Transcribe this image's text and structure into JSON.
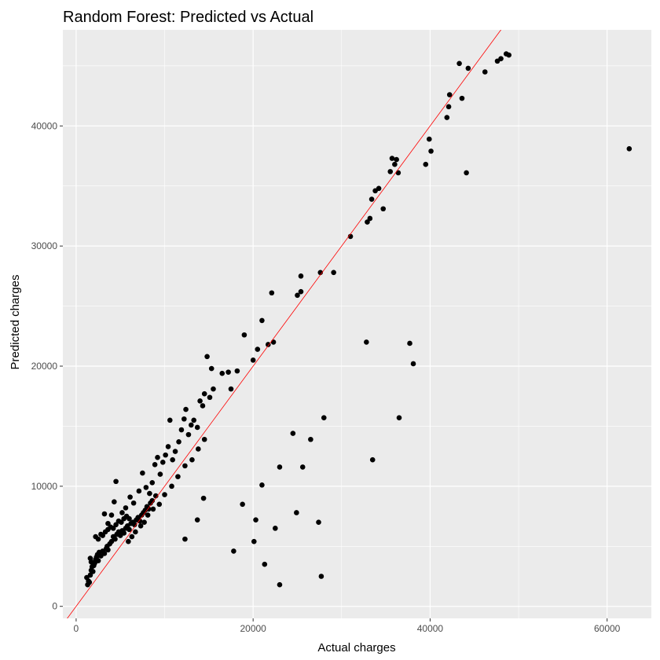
{
  "chart_data": {
    "type": "scatter",
    "title": "Random Forest: Predicted vs Actual",
    "xlabel": "Actual charges",
    "ylabel": "Predicted charges",
    "xlim": [
      -1500,
      65000
    ],
    "ylim": [
      -1000,
      48000
    ],
    "x_ticks": [
      0,
      20000,
      40000,
      60000
    ],
    "x_tick_labels": [
      "0",
      "20000",
      "40000",
      "60000"
    ],
    "y_ticks": [
      0,
      10000,
      20000,
      30000,
      40000
    ],
    "y_tick_labels": [
      "0",
      "10000",
      "20000",
      "30000",
      "40000"
    ],
    "grid": true,
    "legend": "none",
    "reference_line": {
      "slope": 1,
      "intercept": 0,
      "color": "#ff0000"
    },
    "colors": {
      "panel": "#ebebeb",
      "grid": "#ffffff",
      "points": "#000000",
      "line": "#ff0000"
    },
    "points": [
      [
        1200,
        2400
      ],
      [
        1300,
        1800
      ],
      [
        1400,
        2100
      ],
      [
        1500,
        2000
      ],
      [
        1600,
        2600
      ],
      [
        1700,
        3000
      ],
      [
        1800,
        3300
      ],
      [
        1600,
        4000
      ],
      [
        1700,
        3700
      ],
      [
        1900,
        2900
      ],
      [
        2000,
        3400
      ],
      [
        2100,
        3600
      ],
      [
        2200,
        3900
      ],
      [
        2300,
        4100
      ],
      [
        2400,
        4300
      ],
      [
        2500,
        3800
      ],
      [
        2600,
        4500
      ],
      [
        2800,
        4200
      ],
      [
        3000,
        4600
      ],
      [
        3200,
        4400
      ],
      [
        3400,
        4800
      ],
      [
        3500,
        5000
      ],
      [
        3600,
        4700
      ],
      [
        3800,
        5200
      ],
      [
        4000,
        5400
      ],
      [
        4200,
        5800
      ],
      [
        4400,
        5600
      ],
      [
        4600,
        6000
      ],
      [
        4800,
        6200
      ],
      [
        5000,
        5900
      ],
      [
        5200,
        6300
      ],
      [
        5400,
        6100
      ],
      [
        5600,
        6500
      ],
      [
        5800,
        6700
      ],
      [
        6000,
        6400
      ],
      [
        6200,
        6900
      ],
      [
        6400,
        7000
      ],
      [
        6600,
        6800
      ],
      [
        6800,
        7200
      ],
      [
        7000,
        7400
      ],
      [
        7200,
        7100
      ],
      [
        7400,
        7600
      ],
      [
        7600,
        7800
      ],
      [
        7800,
        8000
      ],
      [
        8000,
        8300
      ],
      [
        8200,
        8100
      ],
      [
        8400,
        8600
      ],
      [
        8600,
        8800
      ],
      [
        9000,
        9200
      ],
      [
        2200,
        5800
      ],
      [
        2500,
        5600
      ],
      [
        2800,
        6000
      ],
      [
        3000,
        5900
      ],
      [
        3300,
        6200
      ],
      [
        3600,
        6400
      ],
      [
        3900,
        6600
      ],
      [
        4200,
        6500
      ],
      [
        4500,
        6800
      ],
      [
        4800,
        7100
      ],
      [
        5100,
        7000
      ],
      [
        5400,
        7300
      ],
      [
        5700,
        7500
      ],
      [
        6000,
        7300
      ],
      [
        3200,
        7700
      ],
      [
        3600,
        6900
      ],
      [
        4000,
        7600
      ],
      [
        4300,
        8700
      ],
      [
        4500,
        10400
      ],
      [
        5200,
        7800
      ],
      [
        5600,
        8200
      ],
      [
        6100,
        9100
      ],
      [
        6500,
        8600
      ],
      [
        7100,
        9600
      ],
      [
        7500,
        11100
      ],
      [
        7900,
        9900
      ],
      [
        8300,
        9400
      ],
      [
        8600,
        10300
      ],
      [
        8900,
        11800
      ],
      [
        9200,
        12400
      ],
      [
        9500,
        11000
      ],
      [
        9800,
        12000
      ],
      [
        10100,
        12600
      ],
      [
        10400,
        13300
      ],
      [
        10600,
        15500
      ],
      [
        10900,
        12200
      ],
      [
        11200,
        12900
      ],
      [
        11600,
        13700
      ],
      [
        11900,
        14700
      ],
      [
        12200,
        15600
      ],
      [
        12400,
        16400
      ],
      [
        12700,
        14300
      ],
      [
        13000,
        15100
      ],
      [
        13300,
        15500
      ],
      [
        13700,
        14900
      ],
      [
        14000,
        17100
      ],
      [
        14300,
        16700
      ],
      [
        14500,
        17700
      ],
      [
        14800,
        20800
      ],
      [
        15100,
        17400
      ],
      [
        15300,
        19800
      ],
      [
        15500,
        18100
      ],
      [
        16500,
        19400
      ],
      [
        17200,
        19500
      ],
      [
        17500,
        18100
      ],
      [
        18200,
        19600
      ],
      [
        19000,
        22600
      ],
      [
        20000,
        20500
      ],
      [
        20500,
        21400
      ],
      [
        21000,
        23800
      ],
      [
        21700,
        21800
      ],
      [
        22100,
        26100
      ],
      [
        22300,
        22000
      ],
      [
        25000,
        25900
      ],
      [
        25400,
        26200
      ],
      [
        25400,
        27500
      ],
      [
        27600,
        27800
      ],
      [
        29100,
        27800
      ],
      [
        31000,
        30800
      ],
      [
        32900,
        32000
      ],
      [
        33200,
        32300
      ],
      [
        33400,
        33900
      ],
      [
        33800,
        34600
      ],
      [
        34200,
        34800
      ],
      [
        34700,
        33100
      ],
      [
        35500,
        36200
      ],
      [
        35700,
        37300
      ],
      [
        36000,
        36800
      ],
      [
        36200,
        37200
      ],
      [
        36400,
        36100
      ],
      [
        39500,
        36800
      ],
      [
        39900,
        38900
      ],
      [
        40100,
        37900
      ],
      [
        41900,
        40700
      ],
      [
        42100,
        41600
      ],
      [
        42200,
        42600
      ],
      [
        43300,
        45200
      ],
      [
        43600,
        42300
      ],
      [
        44100,
        36100
      ],
      [
        44300,
        44800
      ],
      [
        46200,
        44500
      ],
      [
        47600,
        45400
      ],
      [
        48000,
        45600
      ],
      [
        48600,
        46000
      ],
      [
        48900,
        45900
      ],
      [
        62500,
        38100
      ],
      [
        5900,
        5400
      ],
      [
        6300,
        5800
      ],
      [
        6700,
        6200
      ],
      [
        7300,
        6700
      ],
      [
        7700,
        7000
      ],
      [
        8100,
        7600
      ],
      [
        8700,
        8100
      ],
      [
        9400,
        8500
      ],
      [
        10000,
        9300
      ],
      [
        10800,
        10000
      ],
      [
        11500,
        10800
      ],
      [
        12300,
        11700
      ],
      [
        13100,
        12200
      ],
      [
        13800,
        13100
      ],
      [
        14500,
        13900
      ],
      [
        12300,
        5600
      ],
      [
        13700,
        7200
      ],
      [
        14400,
        9000
      ],
      [
        17800,
        4600
      ],
      [
        18800,
        8500
      ],
      [
        20100,
        5400
      ],
      [
        20300,
        7200
      ],
      [
        21000,
        10100
      ],
      [
        21300,
        3500
      ],
      [
        22500,
        6500
      ],
      [
        23000,
        1800
      ],
      [
        23000,
        11600
      ],
      [
        24500,
        14400
      ],
      [
        24900,
        7800
      ],
      [
        25600,
        11600
      ],
      [
        26500,
        13900
      ],
      [
        27400,
        7000
      ],
      [
        27700,
        2500
      ],
      [
        28000,
        15700
      ],
      [
        32800,
        22000
      ],
      [
        33500,
        12200
      ],
      [
        36500,
        15700
      ],
      [
        37700,
        21900
      ],
      [
        38100,
        20200
      ]
    ]
  }
}
